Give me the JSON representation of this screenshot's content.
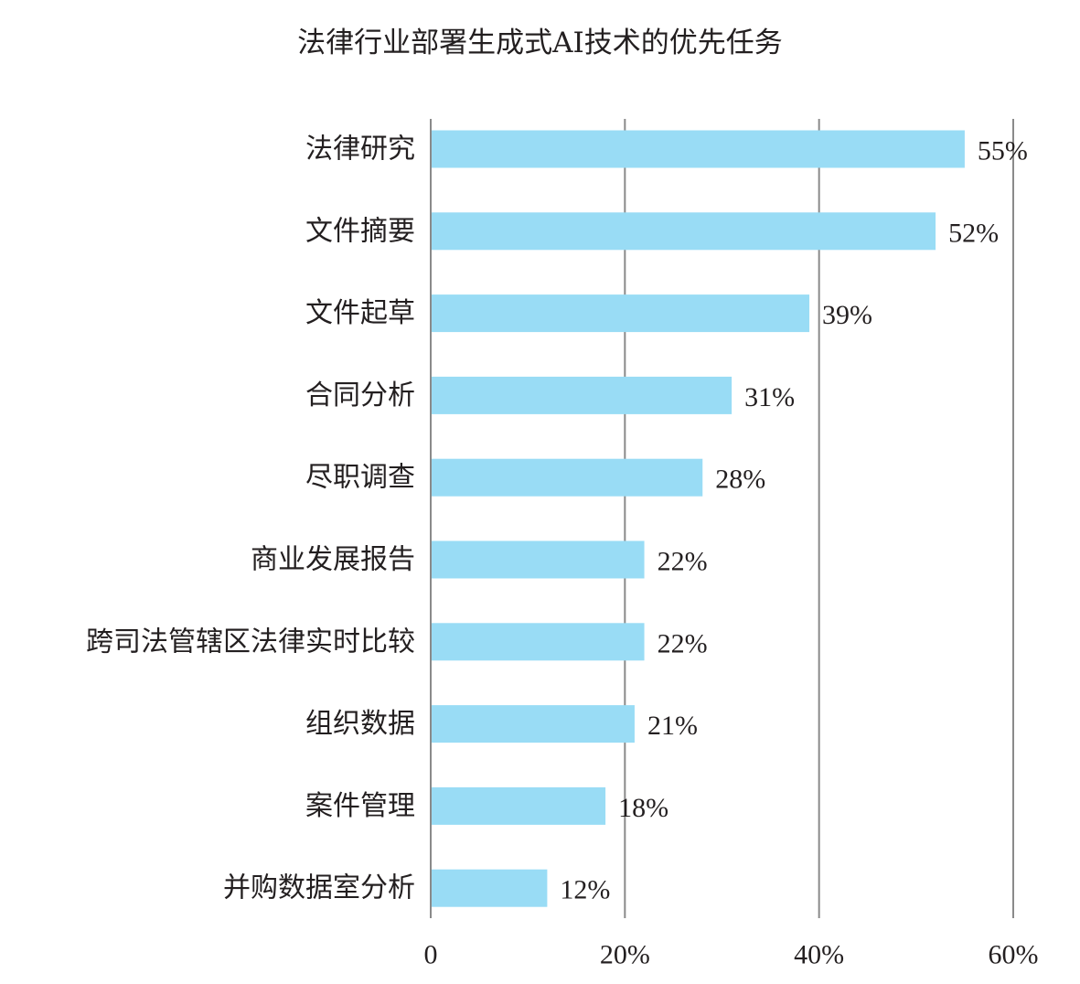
{
  "chart_data": {
    "type": "bar",
    "orientation": "horizontal",
    "title": "法律行业部署生成式AI技术的优先任务",
    "xlabel": "",
    "ylabel": "",
    "categories": [
      "法律研究",
      "文件摘要",
      "文件起草",
      "合同分析",
      "尽职调查",
      "商业发展报告",
      "跨司法管辖区法律实时比较",
      "组织数据",
      "案件管理",
      "并购数据室分析"
    ],
    "values": [
      55,
      52,
      39,
      31,
      28,
      22,
      22,
      21,
      18,
      12
    ],
    "value_labels": [
      "55%",
      "52%",
      "39%",
      "31%",
      "28%",
      "22%",
      "22%",
      "21%",
      "18%",
      "12%"
    ],
    "xlim": [
      0,
      60
    ],
    "xticks": [
      0,
      20,
      40,
      60
    ],
    "xtick_labels": [
      "0",
      "20%",
      "40%",
      "60%"
    ],
    "grid": "vertical",
    "legend": "none",
    "colors": {
      "bar": "#99dcf5",
      "grid": "#8a8a8a",
      "text": "#231f20"
    }
  }
}
